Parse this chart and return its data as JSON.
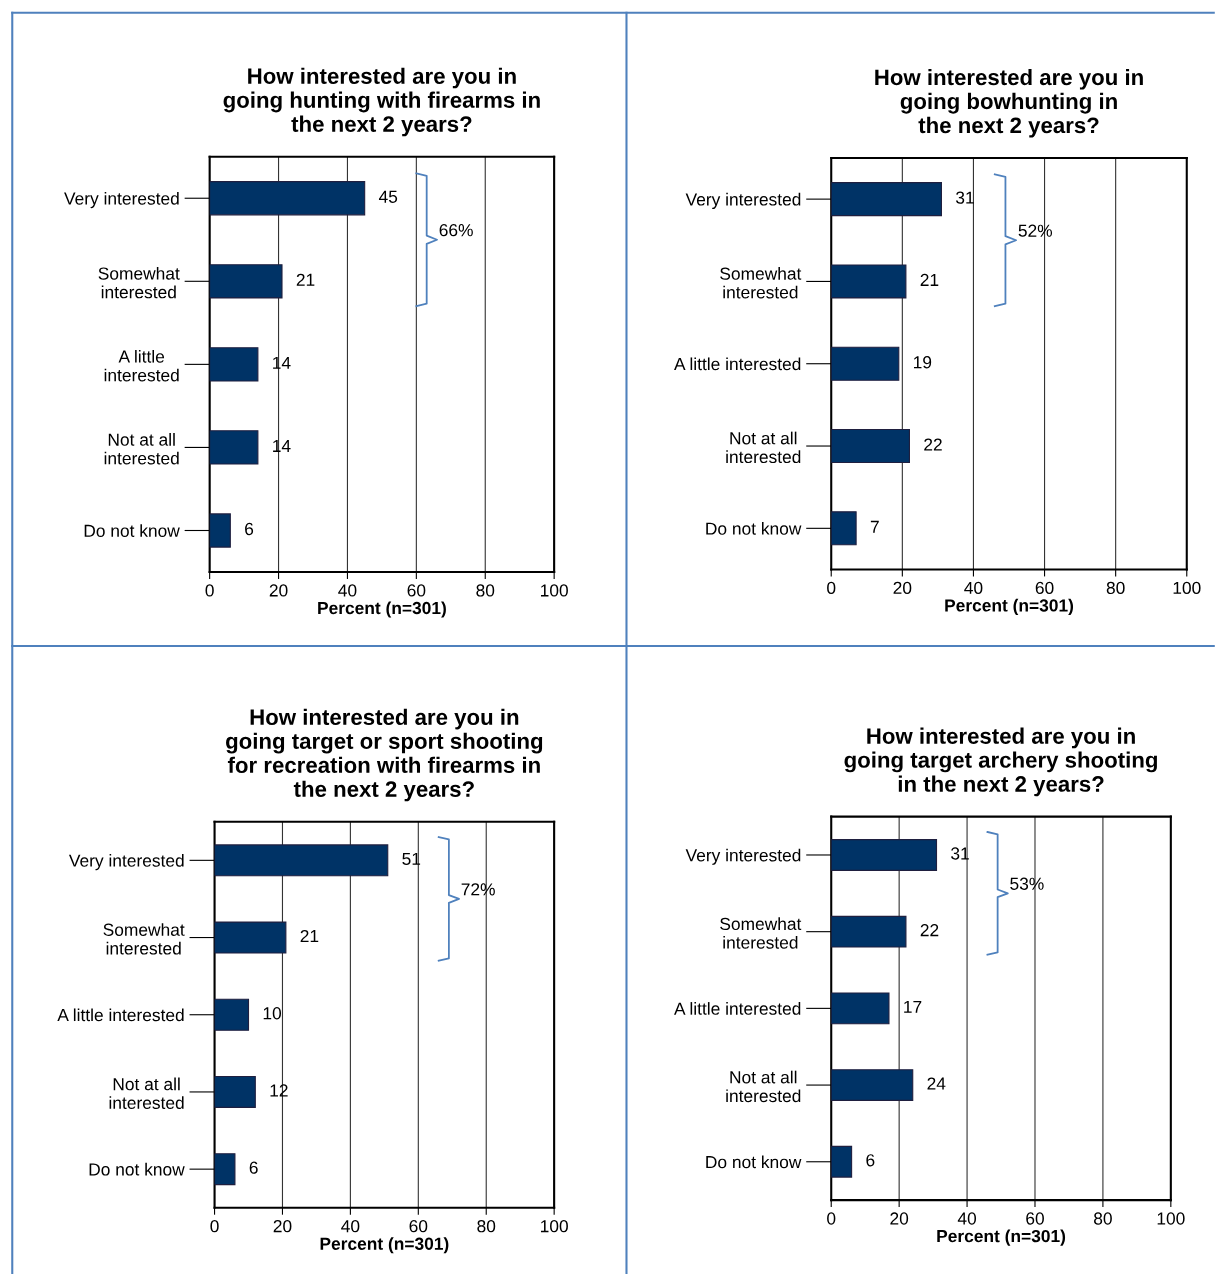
{
  "chart_data": [
    {
      "type": "bar",
      "orientation": "horizontal",
      "title": "How interested are you in\ngoing hunting with firearms in\nthe next 2 years?",
      "xlabel": "Percent (n=301)",
      "categories": [
        "Very interested",
        "Somewhat\ninterested",
        "A little\ninterested",
        "Not at all\ninterested",
        "Do not know"
      ],
      "values": [
        45,
        21,
        14,
        14,
        6
      ],
      "color": "#003366",
      "xlim": [
        0,
        100
      ],
      "xticks": [
        0,
        20,
        40,
        60,
        80,
        100
      ],
      "grid": "x",
      "data_labels": true,
      "annotations": [
        "66%"
      ]
    },
    {
      "type": "bar",
      "orientation": "horizontal",
      "title": "How interested are you in\ngoing bowhunting in\nthe next 2 years?",
      "xlabel": "Percent (n=301)",
      "categories": [
        "Very interested",
        "Somewhat\ninterested",
        "A little interested",
        "Not at all\ninterested",
        "Do not know"
      ],
      "values": [
        31,
        21,
        19,
        22,
        7
      ],
      "color": "#003366",
      "xlim": [
        0,
        100
      ],
      "xticks": [
        0,
        20,
        40,
        60,
        80,
        100
      ],
      "grid": "x",
      "data_labels": true,
      "annotations": [
        "52%"
      ]
    },
    {
      "type": "bar",
      "orientation": "horizontal",
      "title": "How interested are you in\ngoing target or sport shooting\nfor recreation with firearms in\nthe next 2 years?",
      "xlabel": "Percent (n=301)",
      "categories": [
        "Very interested",
        "Somewhat\ninterested",
        "A little interested",
        "Not at all\ninterested",
        "Do not know"
      ],
      "values": [
        51,
        21,
        10,
        12,
        6
      ],
      "color": "#003366",
      "xlim": [
        0,
        100
      ],
      "xticks": [
        0,
        20,
        40,
        60,
        80,
        100
      ],
      "grid": "x",
      "data_labels": true,
      "annotations": [
        "72%"
      ]
    },
    {
      "type": "bar",
      "orientation": "horizontal",
      "title": "How interested are you in\ngoing target archery shooting\nin the next 2 years?",
      "xlabel": "Percent (n=301)",
      "categories": [
        "Very interested",
        "Somewhat\ninterested",
        "A little interested",
        "Not at all\ninterested",
        "Do not know"
      ],
      "values": [
        31,
        22,
        17,
        24,
        6
      ],
      "color": "#003366",
      "xlim": [
        0,
        100
      ],
      "xticks": [
        0,
        20,
        40,
        60,
        80,
        100
      ],
      "grid": "x",
      "data_labels": true,
      "annotations": [
        "53%"
      ]
    }
  ]
}
